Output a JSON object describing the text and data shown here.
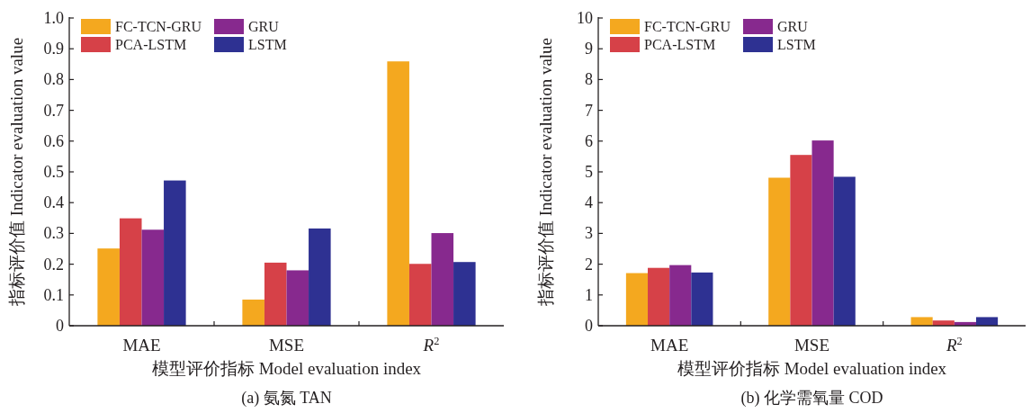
{
  "chart_data": [
    {
      "type": "bar",
      "title": "(a) 氨氮 TAN",
      "xlabel": "模型评价指标 Model evaluation index",
      "ylabel": "指标评价值 Indicator evaluation value",
      "categories": [
        "MAE",
        "MSE",
        "*R*$^{2}$"
      ],
      "series": [
        {
          "name": "FC-TCN-GRU",
          "color": "#f4a81f",
          "values": [
            0.251,
            0.085,
            0.859
          ]
        },
        {
          "name": "PCA-LSTM",
          "color": "#d64148",
          "values": [
            0.349,
            0.205,
            0.201
          ]
        },
        {
          "name": "GRU",
          "color": "#87298e",
          "values": [
            0.312,
            0.18,
            0.301
          ]
        },
        {
          "name": "LSTM",
          "color": "#2e3192",
          "values": [
            0.472,
            0.316,
            0.207
          ]
        }
      ],
      "ylim": [
        0,
        1
      ],
      "yticks": [
        0,
        0.1,
        0.2,
        0.3,
        0.4,
        0.5,
        0.6,
        0.7,
        0.8,
        0.9,
        {
          "value": 1,
          "label": "1.0"
        }
      ],
      "legend": "top left"
    },
    {
      "type": "bar",
      "title": "(b) 化学需氧量 COD",
      "xlabel": "模型评价指标 Model evaluation index",
      "ylabel": "指标评价值 Indicator evaluation value",
      "categories": [
        "MAE",
        "MSE",
        "*R*$^{2}$"
      ],
      "series": [
        {
          "name": "FC-TCN-GRU",
          "color": "#f4a81f",
          "values": [
            1.71,
            4.81,
            0.28
          ]
        },
        {
          "name": "PCA-LSTM",
          "color": "#d64148",
          "values": [
            1.88,
            5.55,
            0.17
          ]
        },
        {
          "name": "GRU",
          "color": "#87298e",
          "values": [
            1.97,
            6.02,
            0.12
          ]
        },
        {
          "name": "LSTM",
          "color": "#2e3192",
          "values": [
            1.73,
            4.84,
            0.28
          ]
        }
      ],
      "ylim": [
        0,
        10
      ],
      "yticks": [
        0,
        1,
        2,
        3,
        4,
        5,
        6,
        7,
        8,
        9,
        10
      ],
      "legend": "top left"
    }
  ]
}
